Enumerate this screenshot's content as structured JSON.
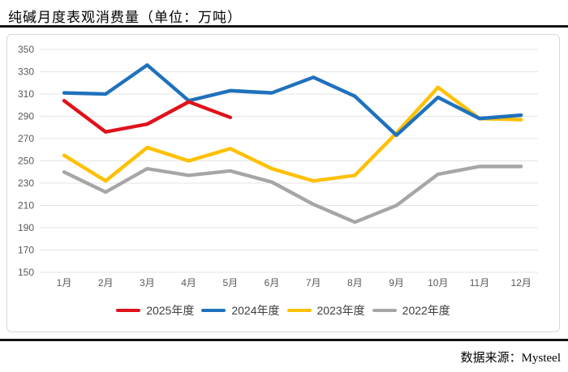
{
  "page": {
    "title": "纯碱月度表观消费量（单位：万吨）",
    "source": "数据来源：Mysteel"
  },
  "chart_data": {
    "type": "line",
    "title": "纯碱月度表观消费量（单位：万吨）",
    "categories": [
      "1月",
      "2月",
      "3月",
      "4月",
      "5月",
      "6月",
      "7月",
      "8月",
      "9月",
      "10月",
      "11月",
      "12月"
    ],
    "series": [
      {
        "name": "2025年度",
        "color": "#e0111a",
        "values": [
          304,
          276,
          283,
          303,
          289
        ]
      },
      {
        "name": "2024年度",
        "color": "#1f71bd",
        "values": [
          311,
          310,
          336,
          304,
          313,
          311,
          325,
          308,
          273,
          307,
          288,
          291
        ]
      },
      {
        "name": "2023年度",
        "color": "#ffc000",
        "values": [
          255,
          232,
          262,
          250,
          261,
          243,
          232,
          237,
          275,
          316,
          288,
          287
        ]
      },
      {
        "name": "2022年度",
        "color": "#a6a6a6",
        "values": [
          240,
          222,
          243,
          237,
          241,
          231,
          211,
          195,
          210,
          238,
          245,
          245
        ]
      }
    ],
    "xlabel": "",
    "ylabel": "",
    "ylim": [
      150,
      350
    ],
    "ytick_step": 20,
    "yticks": [
      350,
      330,
      310,
      290,
      270,
      250,
      230,
      210,
      190,
      170,
      150
    ],
    "grid": "horizontal",
    "gridline_color": "#e4e4e4",
    "legend_position": "bottom"
  }
}
